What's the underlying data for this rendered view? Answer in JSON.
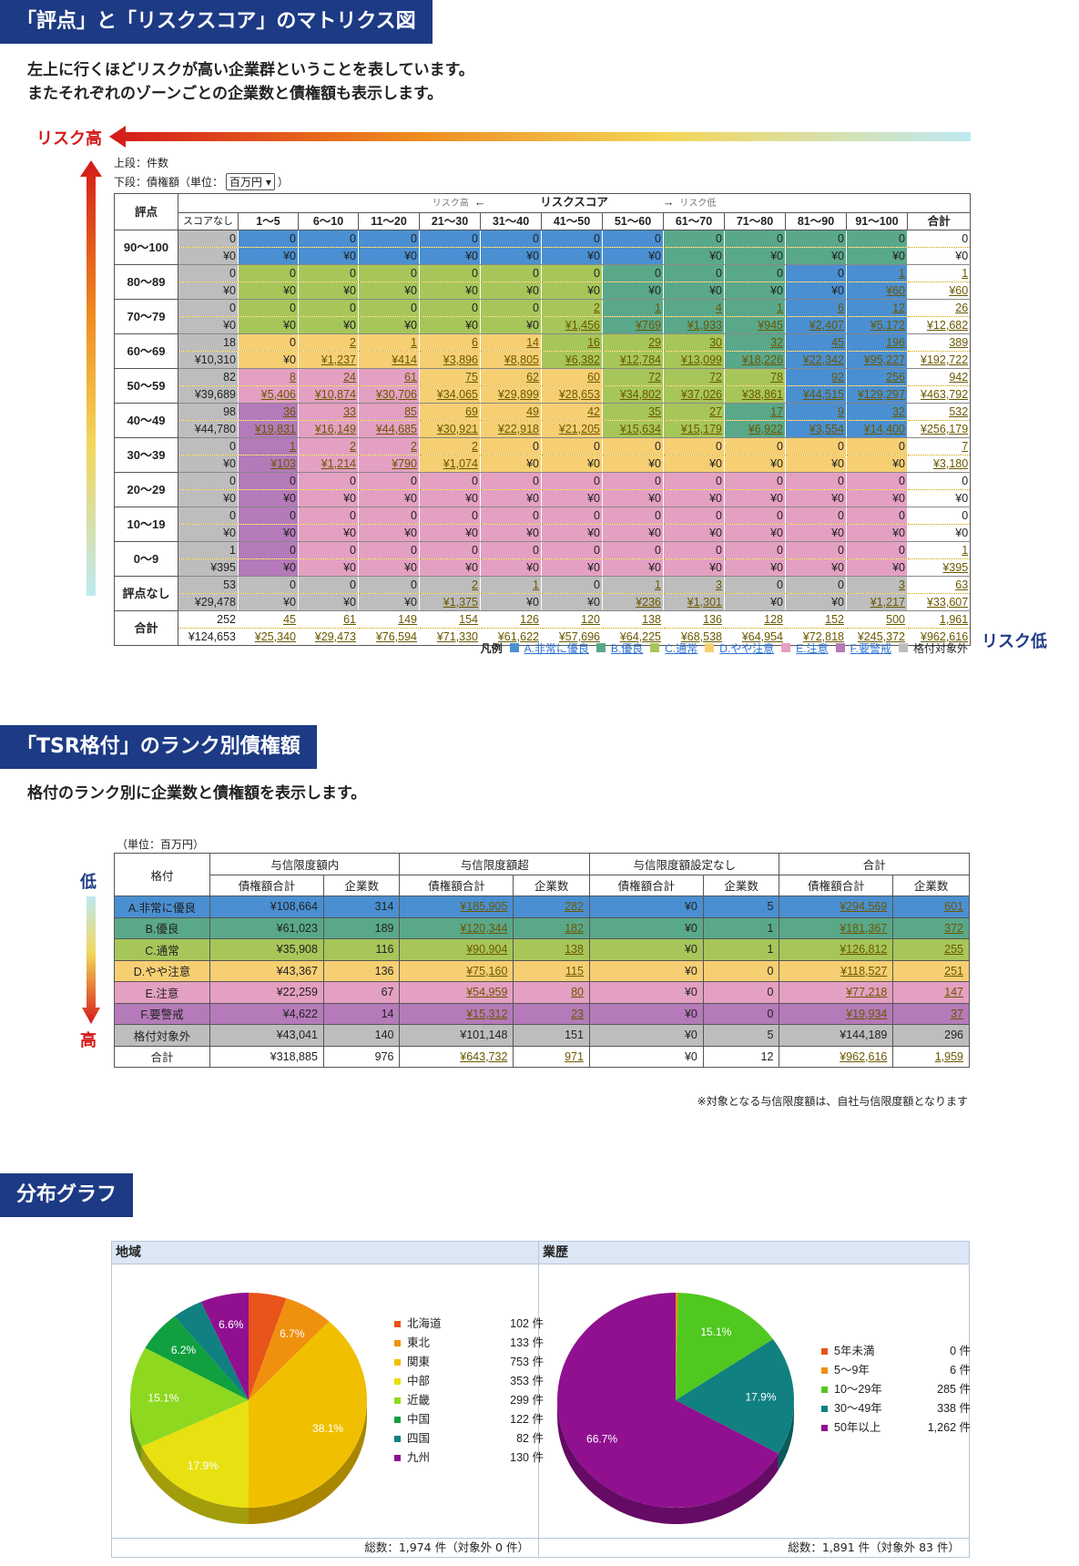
{
  "sec1": {
    "title": "「評点」と「リスクスコア」のマトリクス図",
    "lead": "左上に行くほどリスクが高い企業群ということを表しています。\nまたそれぞれのゾーンごとの企業数と債権額も表示します。",
    "risk_high": "リスク高",
    "risk_low": "リスク低",
    "upper_note": "上段：件数",
    "lower_note": "下段：債権額（単位：",
    "unit_select": "百万円",
    "lower_note_end": "）",
    "hdr_rowlabel": "評点",
    "hdr_left_small": "リスク高",
    "hdr_left_arrow": "←",
    "hdr_center": "リスクスコア",
    "hdr_right_arrow": "→",
    "hdr_right_small": "リスク低",
    "columns": [
      "スコアなし",
      "1～5",
      "6～10",
      "11～20",
      "21～30",
      "31～40",
      "41～50",
      "51～60",
      "61～70",
      "71～80",
      "81～90",
      "91～100",
      "合計"
    ],
    "rows": [
      {
        "label": "90～100",
        "counts": [
          "0",
          "0",
          "0",
          "0",
          "0",
          "0",
          "0",
          "0",
          "0",
          "0",
          "0",
          "0",
          "0"
        ],
        "amounts": [
          "¥0",
          "¥0",
          "¥0",
          "¥0",
          "¥0",
          "¥0",
          "¥0",
          "¥0",
          "¥0",
          "¥0",
          "¥0",
          "¥0",
          "¥0"
        ]
      },
      {
        "label": "80～89",
        "counts": [
          "0",
          "0",
          "0",
          "0",
          "0",
          "0",
          "0",
          "0",
          "0",
          "0",
          "0",
          "1",
          "1"
        ],
        "amounts": [
          "¥0",
          "¥0",
          "¥0",
          "¥0",
          "¥0",
          "¥0",
          "¥0",
          "¥0",
          "¥0",
          "¥0",
          "¥0",
          "¥60",
          "¥60"
        ]
      },
      {
        "label": "70～79",
        "counts": [
          "0",
          "0",
          "0",
          "0",
          "0",
          "0",
          "2",
          "1",
          "4",
          "1",
          "6",
          "12",
          "26"
        ],
        "amounts": [
          "¥0",
          "¥0",
          "¥0",
          "¥0",
          "¥0",
          "¥0",
          "¥1,456",
          "¥769",
          "¥1,933",
          "¥945",
          "¥2,407",
          "¥5,172",
          "¥12,682"
        ]
      },
      {
        "label": "60～69",
        "counts": [
          "18",
          "0",
          "2",
          "1",
          "6",
          "14",
          "16",
          "29",
          "30",
          "32",
          "45",
          "196",
          "389"
        ],
        "amounts": [
          "¥10,310",
          "¥0",
          "¥1,237",
          "¥414",
          "¥3,896",
          "¥8,805",
          "¥6,382",
          "¥12,784",
          "¥13,099",
          "¥18,226",
          "¥22,342",
          "¥95,227",
          "¥192,722"
        ]
      },
      {
        "label": "50～59",
        "counts": [
          "82",
          "8",
          "24",
          "61",
          "75",
          "62",
          "60",
          "72",
          "72",
          "78",
          "92",
          "256",
          "942"
        ],
        "amounts": [
          "¥39,689",
          "¥5,406",
          "¥10,874",
          "¥30,706",
          "¥34,065",
          "¥29,899",
          "¥28,653",
          "¥34,802",
          "¥37,026",
          "¥38,861",
          "¥44,515",
          "¥129,297",
          "¥463,792"
        ]
      },
      {
        "label": "40～49",
        "counts": [
          "98",
          "36",
          "33",
          "85",
          "69",
          "49",
          "42",
          "35",
          "27",
          "17",
          "9",
          "32",
          "532"
        ],
        "amounts": [
          "¥44,780",
          "¥19,831",
          "¥16,149",
          "¥44,685",
          "¥30,921",
          "¥22,918",
          "¥21,205",
          "¥15,634",
          "¥15,179",
          "¥6,922",
          "¥3,554",
          "¥14,400",
          "¥256,179"
        ]
      },
      {
        "label": "30～39",
        "counts": [
          "0",
          "1",
          "2",
          "2",
          "2",
          "0",
          "0",
          "0",
          "0",
          "0",
          "0",
          "0",
          "7"
        ],
        "amounts": [
          "¥0",
          "¥103",
          "¥1,214",
          "¥790",
          "¥1,074",
          "¥0",
          "¥0",
          "¥0",
          "¥0",
          "¥0",
          "¥0",
          "¥0",
          "¥3,180"
        ]
      },
      {
        "label": "20～29",
        "counts": [
          "0",
          "0",
          "0",
          "0",
          "0",
          "0",
          "0",
          "0",
          "0",
          "0",
          "0",
          "0",
          "0"
        ],
        "amounts": [
          "¥0",
          "¥0",
          "¥0",
          "¥0",
          "¥0",
          "¥0",
          "¥0",
          "¥0",
          "¥0",
          "¥0",
          "¥0",
          "¥0",
          "¥0"
        ]
      },
      {
        "label": "10～19",
        "counts": [
          "0",
          "0",
          "0",
          "0",
          "0",
          "0",
          "0",
          "0",
          "0",
          "0",
          "0",
          "0",
          "0"
        ],
        "amounts": [
          "¥0",
          "¥0",
          "¥0",
          "¥0",
          "¥0",
          "¥0",
          "¥0",
          "¥0",
          "¥0",
          "¥0",
          "¥0",
          "¥0",
          "¥0"
        ]
      },
      {
        "label": "0～9",
        "counts": [
          "1",
          "0",
          "0",
          "0",
          "0",
          "0",
          "0",
          "0",
          "0",
          "0",
          "0",
          "0",
          "1"
        ],
        "amounts": [
          "¥395",
          "¥0",
          "¥0",
          "¥0",
          "¥0",
          "¥0",
          "¥0",
          "¥0",
          "¥0",
          "¥0",
          "¥0",
          "¥0",
          "¥395"
        ]
      },
      {
        "label": "評点なし",
        "counts": [
          "53",
          "0",
          "0",
          "0",
          "2",
          "1",
          "0",
          "1",
          "3",
          "0",
          "0",
          "3",
          "63"
        ],
        "amounts": [
          "¥29,478",
          "¥0",
          "¥0",
          "¥0",
          "¥1,375",
          "¥0",
          "¥0",
          "¥236",
          "¥1,301",
          "¥0",
          "¥0",
          "¥1,217",
          "¥33,607"
        ]
      },
      {
        "label": "合計",
        "counts": [
          "252",
          "45",
          "61",
          "149",
          "154",
          "126",
          "120",
          "138",
          "136",
          "128",
          "152",
          "500",
          "1,961"
        ],
        "amounts": [
          "¥124,653",
          "¥25,340",
          "¥29,473",
          "¥76,594",
          "¥71,330",
          "¥61,622",
          "¥57,696",
          "¥64,225",
          "¥68,538",
          "¥64,954",
          "¥72,818",
          "¥245,372",
          "¥962,616"
        ]
      }
    ],
    "zones": [
      "GAAAAAAABBBB",
      "GCCCCCCBBBAA",
      "GCCCCCCBBBAA",
      "GDDDDDCCCBAA",
      "GEEEDDDCCCAA",
      "GFEEDDDCCBAA",
      "GFEEDDDDDDDD",
      "GFEEEEEEEEEE",
      "GFEEEEEEEEEE",
      "GFEEEEEEEEEE",
      "GGGGGGGGGGGG",
      "NNNNNNNNNNNN"
    ],
    "legend_title": "凡例",
    "legend": [
      {
        "label": "A.非常に優良",
        "color": "#4a8fd1",
        "link": true
      },
      {
        "label": "B.優良",
        "color": "#5aa88a",
        "link": true
      },
      {
        "label": "C.通常",
        "color": "#a7c65a",
        "link": true
      },
      {
        "label": "D.やや注意",
        "color": "#f6cf73",
        "link": true
      },
      {
        "label": "E.注意",
        "color": "#e4a0c2",
        "link": true
      },
      {
        "label": "F.要警戒",
        "color": "#b57ab9",
        "link": true
      },
      {
        "label": "格付対象外",
        "color": "#bdbdbd",
        "link": false
      }
    ]
  },
  "zone_colors": {
    "A": "#4a8fd1",
    "B": "#5aa88a",
    "C": "#a7c65a",
    "D": "#f6cf73",
    "E": "#e4a0c2",
    "F": "#b57ab9",
    "G": "#bdbdbd",
    "N": "#ffffff"
  },
  "sec2": {
    "title": "「TSR格付」のランク別債権額",
    "lead": "格付のランク別に企業数と債権額を表示します。",
    "unit": "（単位：百万円）",
    "low": "低",
    "high": "高",
    "col_rank": "格付",
    "groups": [
      "与信限度額内",
      "与信限度額超",
      "与信限度額設定なし",
      "合計"
    ],
    "sub": [
      "債権額合計",
      "企業数"
    ],
    "rows": [
      {
        "rank": "A.非常に優良",
        "color": "#4a8fd1",
        "v": [
          "¥108,664",
          "314",
          "¥185,905",
          "282",
          "¥0",
          "5",
          "¥294,569",
          "601"
        ]
      },
      {
        "rank": "B.優良",
        "color": "#5aa88a",
        "v": [
          "¥61,023",
          "189",
          "¥120,344",
          "182",
          "¥0",
          "1",
          "¥181,367",
          "372"
        ]
      },
      {
        "rank": "C.通常",
        "color": "#a7c65a",
        "v": [
          "¥35,908",
          "116",
          "¥90,904",
          "138",
          "¥0",
          "1",
          "¥126,812",
          "255"
        ]
      },
      {
        "rank": "D.やや注意",
        "color": "#f6cf73",
        "v": [
          "¥43,367",
          "136",
          "¥75,160",
          "115",
          "¥0",
          "0",
          "¥118,527",
          "251"
        ]
      },
      {
        "rank": "E.注意",
        "color": "#e4a0c2",
        "v": [
          "¥22,259",
          "67",
          "¥54,959",
          "80",
          "¥0",
          "0",
          "¥77,218",
          "147"
        ]
      },
      {
        "rank": "F.要警戒",
        "color": "#b57ab9",
        "v": [
          "¥4,622",
          "14",
          "¥15,312",
          "23",
          "¥0",
          "0",
          "¥19,934",
          "37"
        ]
      },
      {
        "rank": "格付対象外",
        "color": "#bdbdbd",
        "v": [
          "¥43,041",
          "140",
          "¥101,148",
          "151",
          "¥0",
          "5",
          "¥144,189",
          "296"
        ]
      },
      {
        "rank": "合計",
        "color": "#ffffff",
        "v": [
          "¥318,885",
          "976",
          "¥643,732",
          "971",
          "¥0",
          "12",
          "¥962,616",
          "1,959"
        ]
      }
    ],
    "note": "※対象となる与信限度額は、自社与信限度額となります"
  },
  "sec3": {
    "title": "分布グラフ",
    "chart_data": [
      {
        "type": "pie",
        "title": "地域",
        "categories": [
          "北海道",
          "東北",
          "関東",
          "中部",
          "近畿",
          "中国",
          "四国",
          "九州"
        ],
        "values": [
          102,
          133,
          753,
          353,
          299,
          122,
          82,
          130
        ],
        "value_labels": [
          "102 件",
          "133 件",
          "753 件",
          "353 件",
          "299 件",
          "122 件",
          "82 件",
          "130 件"
        ],
        "slice_labels": [
          "",
          "6.7%",
          "38.1%",
          "17.9%",
          "15.1%",
          "6.2%",
          "",
          "6.6%"
        ],
        "colors": [
          "#e8541a",
          "#f0900f",
          "#f0c000",
          "#e8e010",
          "#8fd820",
          "#10a040",
          "#108080",
          "#901090"
        ],
        "footer": "総数：1,974 件（対象外 0 件）"
      },
      {
        "type": "pie",
        "title": "業歴",
        "categories": [
          "5年未満",
          "5～9年",
          "10～29年",
          "30～49年",
          "50年以上"
        ],
        "values": [
          0,
          6,
          285,
          338,
          1262
        ],
        "value_labels": [
          "0 件",
          "6 件",
          "285 件",
          "338 件",
          "1,262 件"
        ],
        "slice_labels": [
          "",
          "",
          "15.1%",
          "17.9%",
          "66.7%"
        ],
        "colors": [
          "#e8541a",
          "#f0900f",
          "#50c820",
          "#108080",
          "#901090"
        ],
        "footer": "総数：1,891 件（対象外 83 件）"
      }
    ]
  }
}
